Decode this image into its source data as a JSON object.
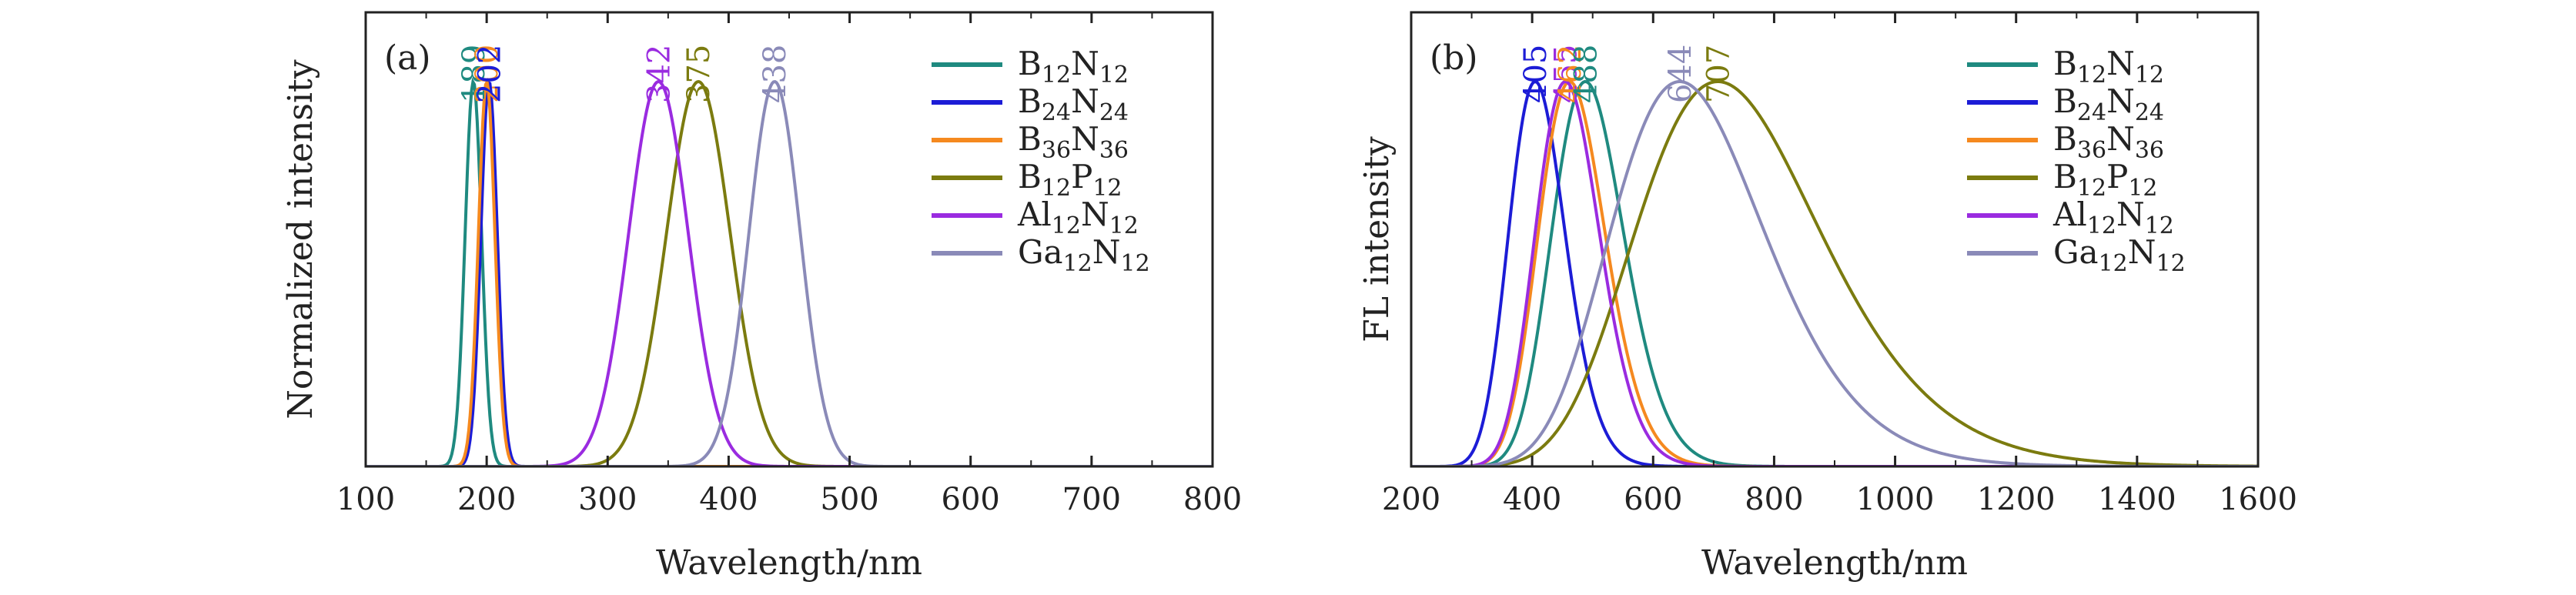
{
  "colors": {
    "B12N12": "#1f8a80",
    "B24N24": "#1c1cd6",
    "B36N36": "#f5891f",
    "B12P12": "#7b7b0f",
    "Al12N12": "#9a2be0",
    "Ga12N12": "#8a8ab8"
  },
  "chart_data": [
    {
      "type": "line",
      "panel_label": "(a)",
      "xlabel": "Wavelength/nm",
      "ylabel": "Normalized intensity",
      "xlim": [
        100,
        800
      ],
      "ylim": [
        0,
        1.0
      ],
      "xticks": [
        100,
        200,
        300,
        400,
        500,
        600,
        700,
        800
      ],
      "legend": {
        "placement": "top-right"
      },
      "series": [
        {
          "key": "B12N12",
          "label_base": "B",
          "label_sub1": "12",
          "label_mid": "N",
          "label_sub2": "12",
          "peak": 189,
          "peak_label": "189",
          "fwhm": 16,
          "color": "#1f8a80"
        },
        {
          "key": "B24N24",
          "label_base": "B",
          "label_sub1": "24",
          "label_mid": "N",
          "label_sub2": "24",
          "peak": 202,
          "peak_label": "202",
          "fwhm": 16,
          "color": "#1c1cd6"
        },
        {
          "key": "B36N36",
          "label_base": "B",
          "label_sub1": "36",
          "label_mid": "N",
          "label_sub2": "36",
          "peak": 200,
          "peak_label": "200",
          "fwhm": 16,
          "color": "#f5891f"
        },
        {
          "key": "B12P12",
          "label_base": "B",
          "label_sub1": "12",
          "label_mid": "P",
          "label_sub2": "12",
          "peak": 375,
          "peak_label": "375",
          "fwhm": 62,
          "color": "#7b7b0f"
        },
        {
          "key": "Al12N12",
          "label_base": "Al",
          "label_sub1": "12",
          "label_mid": "N",
          "label_sub2": "12",
          "peak": 342,
          "peak_label": "342",
          "fwhm": 58,
          "color": "#9a2be0"
        },
        {
          "key": "Ga12N12",
          "label_base": "Ga",
          "label_sub1": "12",
          "label_mid": "N",
          "label_sub2": "12",
          "peak": 438,
          "peak_label": "438",
          "fwhm": 50,
          "color": "#8a8ab8"
        }
      ]
    },
    {
      "type": "line",
      "panel_label": "(b)",
      "xlabel": "Wavelength/nm",
      "ylabel": "FL intensity",
      "xlim": [
        200,
        1600
      ],
      "ylim": [
        0,
        1.0
      ],
      "xticks": [
        200,
        400,
        600,
        800,
        1000,
        1200,
        1400,
        1600
      ],
      "legend": {
        "placement": "top-right"
      },
      "series": [
        {
          "key": "B12N12",
          "label_base": "B",
          "label_sub1": "12",
          "label_mid": "N",
          "label_sub2": "12",
          "peak": 488,
          "peak_label": "488",
          "fwhm": 140,
          "color": "#1f8a80"
        },
        {
          "key": "B24N24",
          "label_base": "B",
          "label_sub1": "24",
          "label_mid": "N",
          "label_sub2": "24",
          "peak": 405,
          "peak_label": "405",
          "fwhm": 110,
          "color": "#1c1cd6"
        },
        {
          "key": "B36N36",
          "label_base": "B",
          "label_sub1": "36",
          "label_mid": "N",
          "label_sub2": "36",
          "peak": 462,
          "peak_label": "462",
          "fwhm": 130,
          "color": "#f5891f"
        },
        {
          "key": "B12P12",
          "label_base": "B",
          "label_sub1": "12",
          "label_mid": "P",
          "label_sub2": "12",
          "peak": 707,
          "peak_label": "707",
          "fwhm": 360,
          "color": "#7b7b0f"
        },
        {
          "key": "Al12N12",
          "label_base": "Al",
          "label_sub1": "12",
          "label_mid": "N",
          "label_sub2": "12",
          "peak": 455,
          "peak_label": "455",
          "fwhm": 125,
          "color": "#9a2be0"
        },
        {
          "key": "Ga12N12",
          "label_base": "Ga",
          "label_sub1": "12",
          "label_mid": "N",
          "label_sub2": "12",
          "peak": 644,
          "peak_label": "644",
          "fwhm": 300,
          "color": "#8a8ab8"
        }
      ]
    }
  ]
}
